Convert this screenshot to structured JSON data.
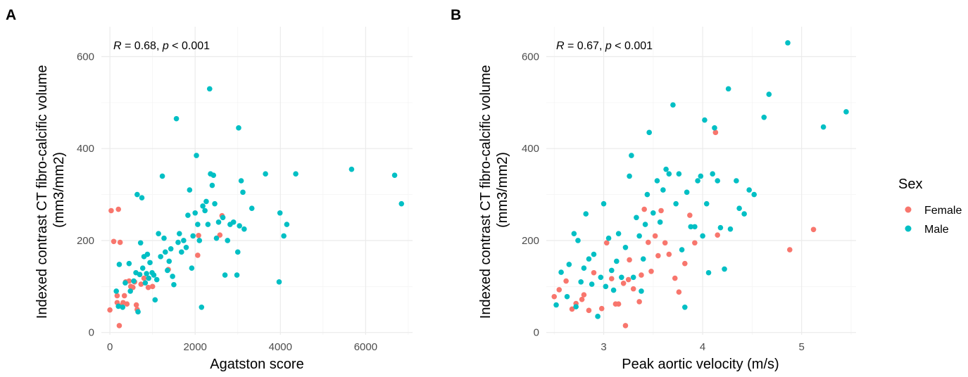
{
  "legend": {
    "title": "Sex",
    "position": "right",
    "entries": [
      {
        "label": "Female",
        "color": "#F8766D"
      },
      {
        "label": "Male",
        "color": "#00BFC4"
      }
    ]
  },
  "chart_data": [
    {
      "type": "scatter",
      "panel_label": "A",
      "title": "",
      "xlabel": "Agatston score",
      "ylabel": [
        "Indexed contrast CT fibro-calcific volume",
        "(mm3/mm2)"
      ],
      "annotation": {
        "r_prefix": "R",
        "rest": " = 0.68, ",
        "p_prefix": "p",
        "p_rest": " < 0.001"
      },
      "xlim": [
        -200,
        7100
      ],
      "ylim": [
        -5,
        665
      ],
      "xticks": [
        0,
        2000,
        4000,
        6000
      ],
      "xtick_labels": [
        "0",
        "2000",
        "4000",
        "6000"
      ],
      "yticks": [
        0,
        200,
        400,
        600
      ],
      "ytick_labels": [
        "0",
        "200",
        "400",
        "600"
      ],
      "grid": true,
      "series": [
        {
          "name": "Female",
          "color": "#F8766D",
          "points": [
            [
              0,
              49
            ],
            [
              30,
              265
            ],
            [
              90,
              198
            ],
            [
              170,
              80
            ],
            [
              170,
              65
            ],
            [
              200,
              268
            ],
            [
              220,
              15
            ],
            [
              240,
              196
            ],
            [
              260,
              58
            ],
            [
              310,
              65
            ],
            [
              340,
              80
            ],
            [
              370,
              110
            ],
            [
              400,
              62
            ],
            [
              450,
              112
            ],
            [
              490,
              100
            ],
            [
              540,
              98
            ],
            [
              580,
              110
            ],
            [
              620,
              60
            ],
            [
              640,
              50
            ],
            [
              730,
              105
            ],
            [
              800,
              118
            ],
            [
              900,
              98
            ],
            [
              1000,
              100
            ],
            [
              1370,
              137
            ],
            [
              2060,
              168
            ],
            [
              2080,
              211
            ],
            [
              2580,
              212
            ],
            [
              2630,
              254
            ]
          ]
        },
        {
          "name": "Male",
          "color": "#00BFC4",
          "points": [
            [
              150,
              90
            ],
            [
              200,
              57
            ],
            [
              220,
              148
            ],
            [
              300,
              55
            ],
            [
              360,
              108
            ],
            [
              450,
              150
            ],
            [
              480,
              90
            ],
            [
              560,
              112
            ],
            [
              610,
              130
            ],
            [
              640,
              300
            ],
            [
              660,
              45
            ],
            [
              700,
              126
            ],
            [
              720,
              195
            ],
            [
              750,
              293
            ],
            [
              770,
              140
            ],
            [
              800,
              165
            ],
            [
              830,
              108
            ],
            [
              860,
              128
            ],
            [
              880,
              170
            ],
            [
              910,
              118
            ],
            [
              940,
              152
            ],
            [
              990,
              130
            ],
            [
              1030,
              125
            ],
            [
              1060,
              71
            ],
            [
              1100,
              115
            ],
            [
              1140,
              215
            ],
            [
              1190,
              165
            ],
            [
              1230,
              340
            ],
            [
              1270,
              205
            ],
            [
              1300,
              175
            ],
            [
              1350,
              135
            ],
            [
              1390,
              155
            ],
            [
              1430,
              182
            ],
            [
              1470,
              122
            ],
            [
              1500,
              104
            ],
            [
              1560,
              465
            ],
            [
              1600,
              196
            ],
            [
              1630,
              215
            ],
            [
              1680,
              175
            ],
            [
              1730,
              200
            ],
            [
              1790,
              185
            ],
            [
              1830,
              255
            ],
            [
              1870,
              310
            ],
            [
              1920,
              140
            ],
            [
              1950,
              210
            ],
            [
              2000,
              260
            ],
            [
              2030,
              385
            ],
            [
              2060,
              235
            ],
            [
              2100,
              200
            ],
            [
              2150,
              55
            ],
            [
              2180,
              275
            ],
            [
              2230,
              265
            ],
            [
              2260,
              285
            ],
            [
              2300,
              235
            ],
            [
              2340,
              530
            ],
            [
              2360,
              345
            ],
            [
              2400,
              320
            ],
            [
              2430,
              342
            ],
            [
              2460,
              280
            ],
            [
              2500,
              205
            ],
            [
              2550,
              240
            ],
            [
              2650,
              250
            ],
            [
              2700,
              125
            ],
            [
              2760,
              200
            ],
            [
              2820,
              235
            ],
            [
              2900,
              240
            ],
            [
              2980,
              125
            ],
            [
              3000,
              175
            ],
            [
              3020,
              445
            ],
            [
              3040,
              232
            ],
            [
              3080,
              330
            ],
            [
              3120,
              305
            ],
            [
              3150,
              225
            ],
            [
              3330,
              270
            ],
            [
              3650,
              345
            ],
            [
              3970,
              110
            ],
            [
              3990,
              260
            ],
            [
              4080,
              210
            ],
            [
              4150,
              235
            ],
            [
              4360,
              345
            ],
            [
              5670,
              355
            ],
            [
              6680,
              342
            ],
            [
              6840,
              280
            ]
          ]
        }
      ]
    },
    {
      "type": "scatter",
      "panel_label": "B",
      "title": "",
      "xlabel": "Peak aortic velocity (m/s)",
      "ylabel": [
        "Indexed contrast CT fibro-calcific volume",
        "(mm3/mm2)"
      ],
      "annotation": {
        "r_prefix": "R",
        "rest": " = 0.67, ",
        "p_prefix": "p",
        "p_rest": " < 0.001"
      },
      "xlim": [
        2.42,
        5.55
      ],
      "ylim": [
        -5,
        665
      ],
      "xticks": [
        3,
        4,
        5
      ],
      "xtick_labels": [
        "3",
        "4",
        "5"
      ],
      "yticks": [
        0,
        200,
        400,
        600
      ],
      "ytick_labels": [
        "0",
        "200",
        "400",
        "600"
      ],
      "grid": true,
      "series": [
        {
          "name": "Female",
          "color": "#F8766D",
          "points": [
            [
              2.5,
              78
            ],
            [
              2.55,
              93
            ],
            [
              2.62,
              112
            ],
            [
              2.68,
              51
            ],
            [
              2.72,
              63
            ],
            [
              2.78,
              72
            ],
            [
              2.8,
              82
            ],
            [
              2.85,
              48
            ],
            [
              2.9,
              130
            ],
            [
              2.98,
              52
            ],
            [
              3.03,
              195
            ],
            [
              3.08,
              117
            ],
            [
              3.12,
              62
            ],
            [
              3.15,
              62
            ],
            [
              3.2,
              107
            ],
            [
              3.22,
              15
            ],
            [
              3.25,
              115
            ],
            [
              3.26,
              158
            ],
            [
              3.3,
              95
            ],
            [
              3.36,
              67
            ],
            [
              3.38,
              125
            ],
            [
              3.41,
              268
            ],
            [
              3.45,
              196
            ],
            [
              3.48,
              133
            ],
            [
              3.52,
              210
            ],
            [
              3.55,
              167
            ],
            [
              3.58,
              265
            ],
            [
              3.62,
              195
            ],
            [
              3.66,
              170
            ],
            [
              3.72,
              118
            ],
            [
              3.76,
              88
            ],
            [
              3.82,
              150
            ],
            [
              3.87,
              255
            ],
            [
              3.92,
              195
            ],
            [
              4.13,
              435
            ],
            [
              4.15,
              212
            ],
            [
              4.88,
              180
            ],
            [
              5.12,
              224
            ]
          ]
        },
        {
          "name": "Male",
          "color": "#00BFC4",
          "points": [
            [
              2.52,
              60
            ],
            [
              2.57,
              131
            ],
            [
              2.63,
              78
            ],
            [
              2.65,
              148
            ],
            [
              2.7,
              215
            ],
            [
              2.72,
              56
            ],
            [
              2.74,
              200
            ],
            [
              2.77,
              110
            ],
            [
              2.8,
              140
            ],
            [
              2.82,
              258
            ],
            [
              2.85,
              160
            ],
            [
              2.88,
              105
            ],
            [
              2.9,
              170
            ],
            [
              2.94,
              35
            ],
            [
              2.97,
              120
            ],
            [
              3.0,
              280
            ],
            [
              3.02,
              100
            ],
            [
              3.05,
              205
            ],
            [
              3.08,
              135
            ],
            [
              3.1,
              92
            ],
            [
              3.13,
              155
            ],
            [
              3.15,
              215
            ],
            [
              3.18,
              120
            ],
            [
              3.22,
              185
            ],
            [
              3.26,
              340
            ],
            [
              3.28,
              385
            ],
            [
              3.3,
              120
            ],
            [
              3.33,
              250
            ],
            [
              3.36,
              210
            ],
            [
              3.38,
              90
            ],
            [
              3.4,
              160
            ],
            [
              3.42,
              235
            ],
            [
              3.44,
              300
            ],
            [
              3.46,
              435
            ],
            [
              3.5,
              260
            ],
            [
              3.54,
              330
            ],
            [
              3.57,
              240
            ],
            [
              3.6,
              310
            ],
            [
              3.63,
              355
            ],
            [
              3.66,
              345
            ],
            [
              3.7,
              495
            ],
            [
              3.73,
              280
            ],
            [
              3.76,
              345
            ],
            [
              3.79,
              180
            ],
            [
              3.82,
              55
            ],
            [
              3.84,
              305
            ],
            [
              3.88,
              230
            ],
            [
              3.92,
              230
            ],
            [
              3.95,
              330
            ],
            [
              3.98,
              340
            ],
            [
              4.0,
              210
            ],
            [
              4.02,
              462
            ],
            [
              4.04,
              280
            ],
            [
              4.06,
              130
            ],
            [
              4.1,
              345
            ],
            [
              4.12,
              445
            ],
            [
              4.15,
              330
            ],
            [
              4.18,
              228
            ],
            [
              4.22,
              138
            ],
            [
              4.26,
              530
            ],
            [
              4.28,
              225
            ],
            [
              4.34,
              330
            ],
            [
              4.37,
              270
            ],
            [
              4.42,
              258
            ],
            [
              4.47,
              310
            ],
            [
              4.52,
              300
            ],
            [
              4.62,
              468
            ],
            [
              4.67,
              518
            ],
            [
              5.22,
              447
            ],
            [
              5.45,
              480
            ],
            [
              4.86,
              630
            ]
          ]
        }
      ]
    }
  ]
}
